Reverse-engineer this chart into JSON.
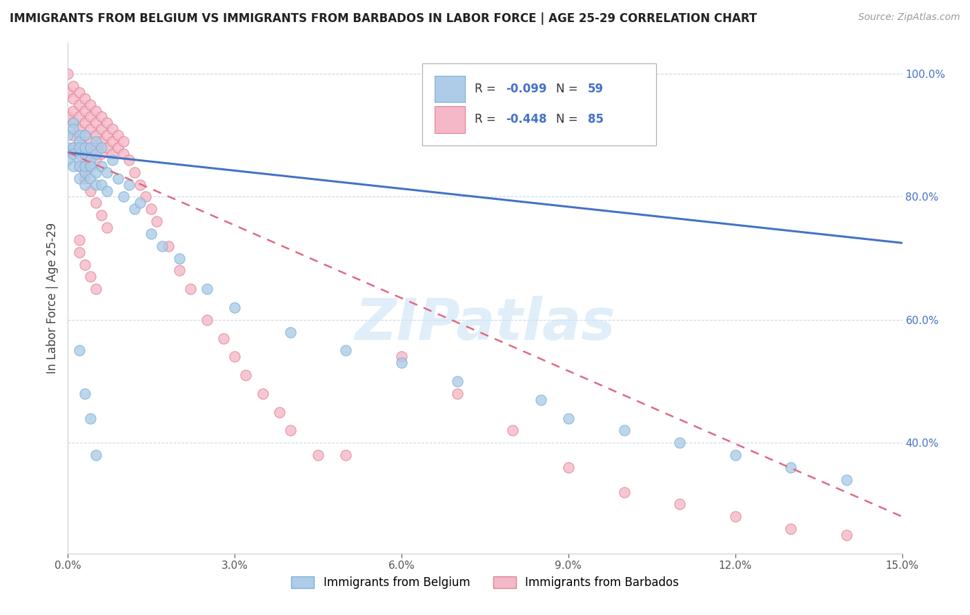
{
  "title": "IMMIGRANTS FROM BELGIUM VS IMMIGRANTS FROM BARBADOS IN LABOR FORCE | AGE 25-29 CORRELATION CHART",
  "source": "Source: ZipAtlas.com",
  "ylabel": "In Labor Force | Age 25-29",
  "xlim": [
    0.0,
    0.15
  ],
  "ylim": [
    0.22,
    1.05
  ],
  "xticks": [
    0.0,
    0.03,
    0.06,
    0.09,
    0.12,
    0.15
  ],
  "xtick_labels": [
    "0.0%",
    "3.0%",
    "6.0%",
    "9.0%",
    "12.0%",
    "15.0%"
  ],
  "yticks": [
    0.4,
    0.6,
    0.8,
    1.0
  ],
  "ytick_labels": [
    "40.0%",
    "60.0%",
    "80.0%",
    "100.0%"
  ],
  "grid_color": "#c8d8e8",
  "background_color": "#ffffff",
  "belgium_color": "#aecce8",
  "barbados_color": "#f5b8c8",
  "belgium_edge": "#7aafd4",
  "barbados_edge": "#e08090",
  "trend_belgium_color": "#4472c4",
  "trend_barbados_color": "#e06880",
  "R_belgium": -0.099,
  "N_belgium": 59,
  "R_barbados": -0.448,
  "N_barbados": 85,
  "legend_label_belgium": "Immigrants from Belgium",
  "legend_label_barbados": "Immigrants from Barbados",
  "trend_bel_x0": 0.0,
  "trend_bel_y0": 0.872,
  "trend_bel_x1": 0.15,
  "trend_bel_y1": 0.725,
  "trend_bar_x0": 0.0,
  "trend_bar_y0": 0.872,
  "trend_bar_x1": 0.15,
  "trend_bar_y1": 0.28,
  "belgium_x": [
    0.0,
    0.0,
    0.0,
    0.001,
    0.001,
    0.001,
    0.001,
    0.001,
    0.002,
    0.002,
    0.002,
    0.002,
    0.002,
    0.002,
    0.003,
    0.003,
    0.003,
    0.003,
    0.003,
    0.003,
    0.004,
    0.004,
    0.004,
    0.004,
    0.005,
    0.005,
    0.005,
    0.005,
    0.006,
    0.006,
    0.006,
    0.007,
    0.007,
    0.008,
    0.009,
    0.01,
    0.011,
    0.012,
    0.013,
    0.015,
    0.017,
    0.02,
    0.025,
    0.03,
    0.04,
    0.05,
    0.06,
    0.07,
    0.085,
    0.09,
    0.1,
    0.11,
    0.12,
    0.13,
    0.14,
    0.002,
    0.003,
    0.004,
    0.005
  ],
  "belgium_y": [
    0.88,
    0.86,
    0.9,
    0.92,
    0.88,
    0.85,
    0.91,
    0.87,
    0.9,
    0.86,
    0.89,
    0.85,
    0.88,
    0.83,
    0.87,
    0.84,
    0.88,
    0.85,
    0.82,
    0.9,
    0.86,
    0.83,
    0.88,
    0.85,
    0.84,
    0.87,
    0.82,
    0.89,
    0.85,
    0.82,
    0.88,
    0.84,
    0.81,
    0.86,
    0.83,
    0.8,
    0.82,
    0.78,
    0.79,
    0.74,
    0.72,
    0.7,
    0.65,
    0.62,
    0.58,
    0.55,
    0.53,
    0.5,
    0.47,
    0.44,
    0.42,
    0.4,
    0.38,
    0.36,
    0.34,
    0.55,
    0.48,
    0.44,
    0.38
  ],
  "barbados_x": [
    0.0,
    0.0,
    0.0,
    0.001,
    0.001,
    0.001,
    0.001,
    0.001,
    0.001,
    0.002,
    0.002,
    0.002,
    0.002,
    0.002,
    0.002,
    0.002,
    0.003,
    0.003,
    0.003,
    0.003,
    0.003,
    0.003,
    0.003,
    0.004,
    0.004,
    0.004,
    0.004,
    0.004,
    0.004,
    0.005,
    0.005,
    0.005,
    0.005,
    0.005,
    0.006,
    0.006,
    0.006,
    0.006,
    0.007,
    0.007,
    0.007,
    0.008,
    0.008,
    0.008,
    0.009,
    0.009,
    0.01,
    0.01,
    0.011,
    0.012,
    0.013,
    0.014,
    0.015,
    0.016,
    0.018,
    0.02,
    0.022,
    0.025,
    0.028,
    0.03,
    0.032,
    0.035,
    0.038,
    0.04,
    0.045,
    0.05,
    0.06,
    0.07,
    0.08,
    0.09,
    0.1,
    0.11,
    0.12,
    0.13,
    0.14,
    0.003,
    0.004,
    0.005,
    0.006,
    0.007,
    0.002,
    0.002,
    0.003,
    0.004,
    0.005
  ],
  "barbados_y": [
    1.0,
    0.97,
    0.93,
    0.98,
    0.96,
    0.94,
    0.92,
    0.9,
    0.88,
    0.97,
    0.95,
    0.93,
    0.91,
    0.89,
    0.87,
    0.85,
    0.96,
    0.94,
    0.92,
    0.9,
    0.88,
    0.86,
    0.84,
    0.95,
    0.93,
    0.91,
    0.89,
    0.87,
    0.85,
    0.94,
    0.92,
    0.9,
    0.88,
    0.86,
    0.93,
    0.91,
    0.89,
    0.87,
    0.92,
    0.9,
    0.88,
    0.91,
    0.89,
    0.87,
    0.9,
    0.88,
    0.89,
    0.87,
    0.86,
    0.84,
    0.82,
    0.8,
    0.78,
    0.76,
    0.72,
    0.68,
    0.65,
    0.6,
    0.57,
    0.54,
    0.51,
    0.48,
    0.45,
    0.42,
    0.38,
    0.38,
    0.54,
    0.48,
    0.42,
    0.36,
    0.32,
    0.3,
    0.28,
    0.26,
    0.25,
    0.83,
    0.81,
    0.79,
    0.77,
    0.75,
    0.73,
    0.71,
    0.69,
    0.67,
    0.65
  ]
}
